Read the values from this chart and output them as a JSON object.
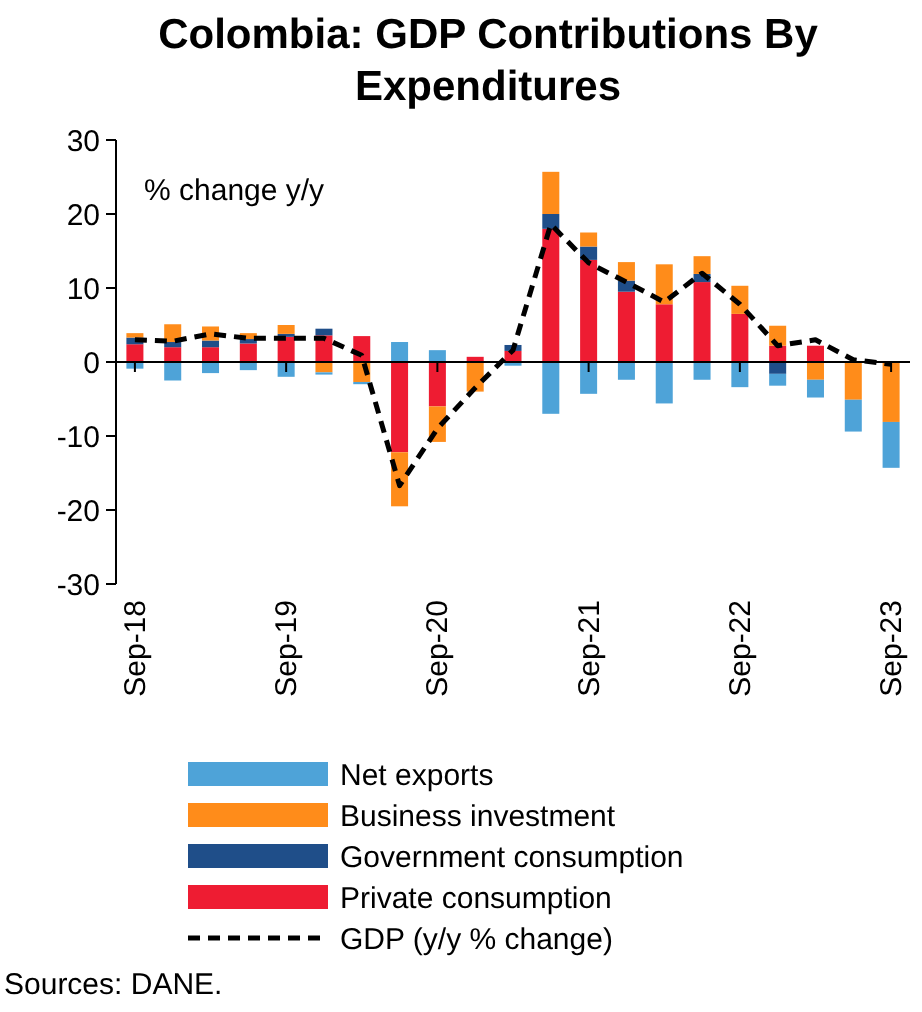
{
  "chart_data": {
    "type": "bar",
    "title": "Colombia: GDP Contributions By Expenditures",
    "stacked": true,
    "categories": [
      "Sep-18",
      null,
      null,
      null,
      "Sep-19",
      null,
      null,
      null,
      "Sep-20",
      null,
      null,
      null,
      "Sep-21",
      null,
      null,
      null,
      "Sep-22",
      null,
      null,
      null,
      "Sep-23"
    ],
    "series": [
      {
        "name": "Private consumption",
        "color": "#ee1c32",
        "values": [
          2.4,
          2.0,
          2.0,
          2.5,
          3.4,
          3.6,
          3.5,
          -12.2,
          -6.0,
          0.7,
          1.5,
          18.0,
          13.8,
          9.5,
          7.8,
          10.8,
          6.5,
          2.2,
          2.2,
          null,
          null
        ]
      },
      {
        "name": "Government consumption",
        "color": "#1f4e89",
        "values": [
          0.9,
          0.7,
          0.9,
          0.6,
          0.4,
          0.9,
          0,
          0,
          0,
          0,
          0.8,
          2.0,
          1.8,
          1.5,
          0,
          1.1,
          0,
          -1.6,
          0,
          0,
          0
        ]
      },
      {
        "name": "Business investment",
        "color": "#ff8c1a",
        "values": [
          0.6,
          2.4,
          1.9,
          0.8,
          1.2,
          -1.4,
          -2.7,
          -7.3,
          -4.8,
          -4.0,
          0,
          5.7,
          1.9,
          2.5,
          5.4,
          2.4,
          3.8,
          2.7,
          -2.4,
          -5.1,
          -8.1
        ]
      },
      {
        "name": "Net exports",
        "color": "#4ea3d8",
        "values": [
          -0.9,
          -2.5,
          -1.5,
          -1.1,
          -2.0,
          -0.3,
          -0.3,
          2.7,
          1.6,
          0,
          -0.5,
          -7.0,
          -4.3,
          -2.4,
          -5.6,
          -2.4,
          -3.4,
          -1.6,
          -2.4,
          -4.3,
          -6.2
        ]
      },
      {
        "name": "GDP (y/y % change)",
        "type": "line",
        "color": "#000000",
        "line_style": "dashed",
        "marker": "none",
        "values": [
          3.0,
          2.8,
          3.8,
          3.2,
          3.2,
          3.2,
          0.9,
          -16.7,
          -9.0,
          -3.5,
          1.6,
          18.6,
          13.4,
          10.8,
          8.1,
          12.0,
          7.8,
          2.2,
          3.0,
          0.3,
          -0.3
        ]
      }
    ],
    "ylim": [
      -30,
      30
    ],
    "yticks": [
      -30,
      -20,
      -10,
      0,
      10,
      20,
      30
    ],
    "legend": "bottom",
    "annotations": [
      "% change y/y",
      "Sources: DANE."
    ]
  }
}
